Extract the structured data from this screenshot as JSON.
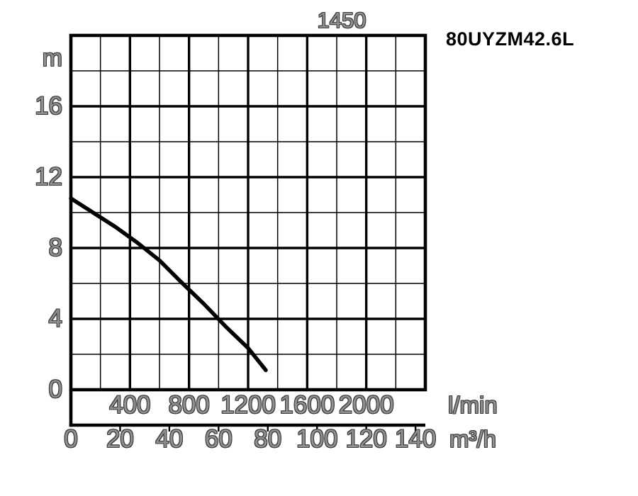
{
  "header": {
    "rpm_label": "1450",
    "model_label": "80UYZM42.6L"
  },
  "axes": {
    "y": {
      "unit": "m",
      "ticks": [
        {
          "value": 16,
          "label": "16"
        },
        {
          "value": 12,
          "label": "12"
        },
        {
          "value": 8,
          "label": "8"
        },
        {
          "value": 4,
          "label": "4"
        },
        {
          "value": 0,
          "label": "0"
        }
      ]
    },
    "x_lmin": {
      "unit": "l/min",
      "ticks": [
        {
          "value": 400,
          "label": "400"
        },
        {
          "value": 800,
          "label": "800"
        },
        {
          "value": 1200,
          "label": "1200"
        },
        {
          "value": 1600,
          "label": "1600"
        },
        {
          "value": 2000,
          "label": "2000"
        }
      ]
    },
    "x_m3h": {
      "unit": "m³/h",
      "ticks": [
        {
          "value": 0,
          "label": "0"
        },
        {
          "value": 20,
          "label": "20"
        },
        {
          "value": 40,
          "label": "40"
        },
        {
          "value": 60,
          "label": "60"
        },
        {
          "value": 80,
          "label": "80"
        },
        {
          "value": 100,
          "label": "100"
        },
        {
          "value": 120,
          "label": "120"
        },
        {
          "value": 140,
          "label": "140"
        }
      ]
    }
  },
  "chart_data": {
    "type": "line",
    "title": "1450",
    "subtitle": "80UYZM42.6L",
    "ylabel": "m",
    "xlabel_primary_scale": "l/min",
    "xlabel_secondary_scale": "m³/h",
    "xlim_lmin": [
      0,
      2400
    ],
    "xlim_m3h": [
      0,
      144
    ],
    "ylim": [
      0,
      20
    ],
    "grid": {
      "grid_on": true,
      "x_minor_step_lmin": 200,
      "x_major_step_lmin": 400,
      "y_minor_step": 2,
      "y_major_step": 4
    },
    "series": [
      {
        "name": "80UYZM42.6L",
        "points_lmin_m": [
          [
            0,
            10.8
          ],
          [
            150,
            10.0
          ],
          [
            300,
            9.2
          ],
          [
            450,
            8.3
          ],
          [
            600,
            7.3
          ],
          [
            750,
            6.05
          ],
          [
            900,
            4.85
          ],
          [
            1050,
            3.55
          ],
          [
            1200,
            2.35
          ],
          [
            1320,
            1.1
          ]
        ]
      }
    ],
    "legend": "none",
    "colors": {
      "curve": "#000000",
      "grid": "#000000",
      "frame": "#000000",
      "tick_label": "#3d3d3d",
      "model_label": "#000000",
      "background": "#ffffff"
    }
  }
}
